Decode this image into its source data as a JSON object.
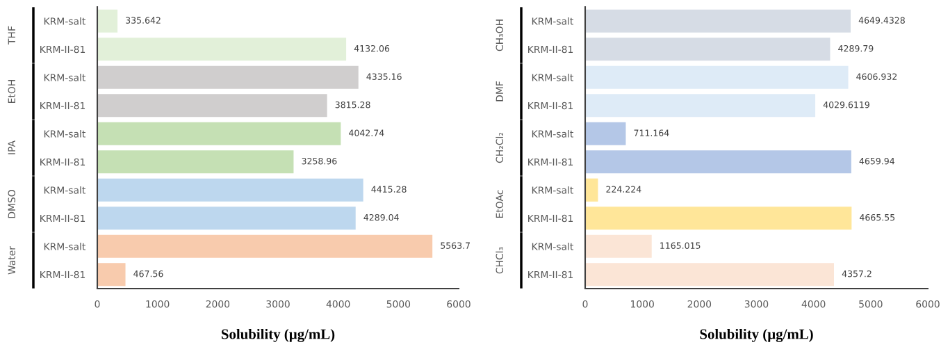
{
  "chart_data": [
    {
      "type": "bar",
      "orientation": "horizontal",
      "categories": [
        "KRM-salt",
        "KRM-II-81",
        "KRM-salt",
        "KRM-II-81",
        "KRM-salt",
        "KRM-II-81",
        "KRM-salt",
        "KRM-II-81",
        "KRM-salt",
        "KRM-II-81"
      ],
      "values": [
        335.642,
        4132.06,
        4335.16,
        3815.28,
        4042.74,
        3258.96,
        4415.28,
        4289.04,
        5563.7,
        467.56
      ],
      "colors": [
        "#e2f0d9",
        "#e2f0d9",
        "#d0cece",
        "#d0cece",
        "#c5e0b4",
        "#c5e0b4",
        "#bdd7ee",
        "#bdd7ee",
        "#f8cbad",
        "#f8cbad"
      ],
      "data_labels": true,
      "xlim": [
        0,
        6000
      ],
      "xticks": [
        0,
        1000,
        2000,
        3000,
        4000,
        5000,
        6000
      ],
      "xlabel": "Solubility (µg/mL)",
      "grid": false,
      "legend": false,
      "annotations": [
        "THF",
        "EtOH",
        "IPA",
        "DMSO",
        "Water"
      ]
    },
    {
      "type": "bar",
      "orientation": "horizontal",
      "categories": [
        "KRM-salt",
        "KRM-II-81",
        "KRM-salt",
        "KRM-II-81",
        "KRM-salt",
        "KRM-II-81",
        "KRM-salt",
        "KRM-II-81",
        "KRM-salt",
        "KRM-II-81"
      ],
      "values": [
        4649.4328,
        4289.79,
        4606.932,
        4029.6119,
        711.164,
        4659.94,
        224.224,
        4665.55,
        1165.015,
        4357.2
      ],
      "colors": [
        "#d6dce5",
        "#d6dce5",
        "#deebf7",
        "#deebf7",
        "#b4c7e7",
        "#b4c7e7",
        "#ffe699",
        "#ffe699",
        "#fbe5d6",
        "#fbe5d6"
      ],
      "data_labels": true,
      "xlim": [
        0,
        6000
      ],
      "xticks": [
        0,
        1000,
        2000,
        3000,
        4000,
        5000,
        6000
      ],
      "xlabel": "Solubility (µg/mL)",
      "grid": false,
      "legend": false,
      "annotations": [
        "CH₃OH",
        "DMF",
        "CH₂Cl₂",
        "EtOAc",
        "CHCl₃"
      ]
    }
  ]
}
